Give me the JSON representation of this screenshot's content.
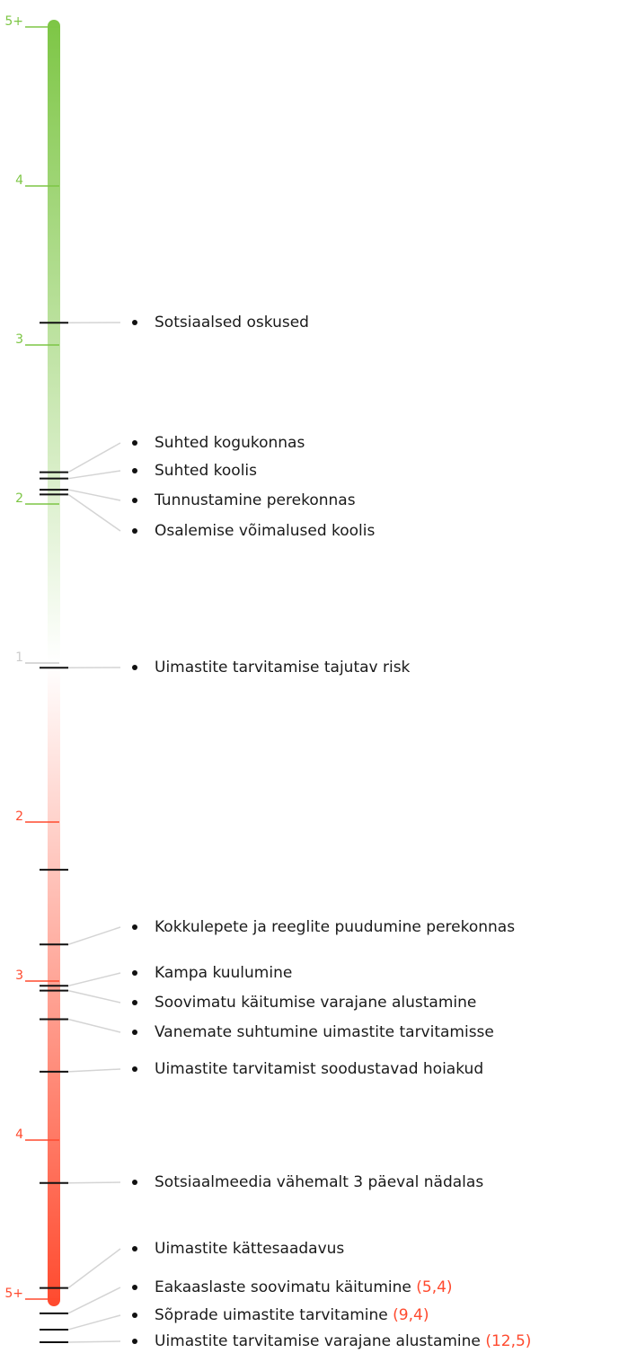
{
  "chart_data": {
    "type": "scale",
    "protective_color": "#7dc645",
    "risk_color": "#ff4a2e",
    "protective_ticks": [
      {
        "value": 5,
        "label": "5+"
      },
      4,
      3,
      2,
      1
    ],
    "risk_ticks": [
      2,
      3,
      4,
      {
        "value": 5,
        "label": "5+"
      }
    ],
    "items": [
      {
        "label": "Sotsiaalsed oskused",
        "side": "protective",
        "value": 3.14
      },
      {
        "label": "Suhted kogukonnas",
        "side": "protective",
        "value": 2.2
      },
      {
        "label": "Suhted koolis",
        "side": "protective",
        "value": 2.16
      },
      {
        "label": "Tunnustamine perekonnas",
        "side": "protective",
        "value": 2.09
      },
      {
        "label": "Osalemise võimalused koolis",
        "side": "protective",
        "value": 2.06
      },
      {
        "label": "Uimastite tarvitamise tajutav risk",
        "side": "risk",
        "value": 1.03
      },
      {
        "label": null,
        "side": "risk",
        "value": 2.3
      },
      {
        "label": "Kokkulepete ja reeglite puudumine perekonnas",
        "side": "risk",
        "value": 2.77
      },
      {
        "label": "Kampa kuulumine",
        "side": "risk",
        "value": 3.03
      },
      {
        "label": "Soovimatu käitumise varajane alustamine",
        "side": "risk",
        "value": 3.06
      },
      {
        "label": "Vanemate suhtumine uimastite tarvitamisse",
        "side": "risk",
        "value": 3.24
      },
      {
        "label": "Uimastite tarvitamist soodustavad hoiakud",
        "side": "risk",
        "value": 3.57
      },
      {
        "label": "Sotsiaalmeedia vähemalt 3 päeval nädalas",
        "side": "risk",
        "value": 4.27
      },
      {
        "label": "Uimastite kättesaadavus",
        "side": "risk",
        "value": 4.93
      },
      {
        "label": "Eakaaslaste soovimatu käitumine",
        "side": "risk",
        "value": 5.4,
        "value_label": "(5,4)"
      },
      {
        "label": "Sõprade uimastite tarvitamine",
        "side": "risk",
        "value": 9.4,
        "value_label": "(9,4)"
      },
      {
        "label": "Uimastite tarvitamise varajane alustamine",
        "side": "risk",
        "value": 12.5,
        "value_label": "(12,5)"
      }
    ]
  }
}
